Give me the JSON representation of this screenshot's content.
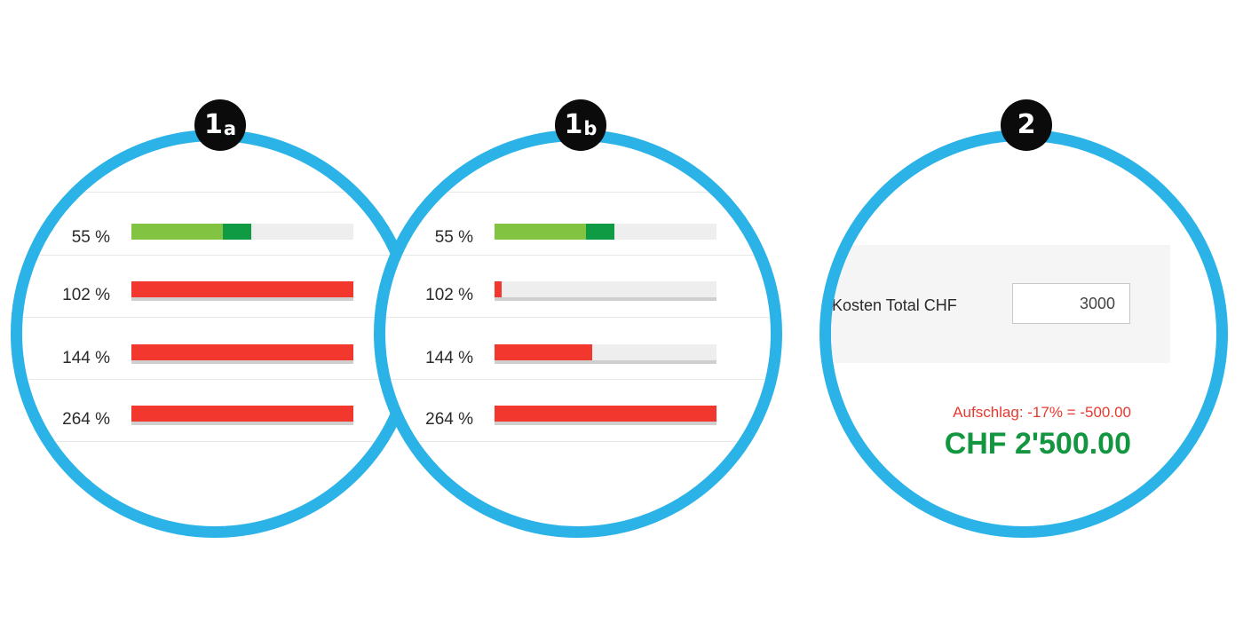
{
  "circles": [
    {
      "badge": {
        "num": "1",
        "letter": "a"
      },
      "rows": [
        {
          "label": "55 %",
          "segments": [
            {
              "start": 0,
              "fraction": 0.41,
              "color": "#82c341"
            },
            {
              "start": 0.41,
              "fraction": 0.13,
              "color": "#0f9a44"
            }
          ]
        },
        {
          "label": "102 %",
          "segments": [
            {
              "start": 0,
              "fraction": 1.0,
              "color": "#f2382e"
            }
          ]
        },
        {
          "label": "144 %",
          "segments": [
            {
              "start": 0,
              "fraction": 1.0,
              "color": "#f2382e"
            }
          ]
        },
        {
          "label": "264 %",
          "segments": [
            {
              "start": 0,
              "fraction": 1.0,
              "color": "#f2382e"
            }
          ]
        }
      ]
    },
    {
      "badge": {
        "num": "1",
        "letter": "b"
      },
      "rows": [
        {
          "label": "55 %",
          "segments": [
            {
              "start": 0,
              "fraction": 0.41,
              "color": "#82c341"
            },
            {
              "start": 0.41,
              "fraction": 0.13,
              "color": "#0f9a44"
            }
          ]
        },
        {
          "label": "102 %",
          "segments": [
            {
              "start": 0,
              "fraction": 0.03,
              "color": "#f2382e"
            }
          ]
        },
        {
          "label": "144 %",
          "segments": [
            {
              "start": 0,
              "fraction": 0.44,
              "color": "#f2382e"
            }
          ]
        },
        {
          "label": "264 %",
          "segments": [
            {
              "start": 0,
              "fraction": 1.0,
              "color": "#f2382e"
            }
          ]
        }
      ]
    }
  ],
  "panel2": {
    "badge": {
      "num": "2"
    },
    "kosten_label": "e Kosten Total CHF",
    "kosten_value": "3000",
    "aufschlag": "Aufschlag: -17% = -500.00",
    "total": "CHF 2'500.00"
  },
  "colors": {
    "circle_border": "#2bb3e8",
    "badge_bg": "#0b0b0b",
    "aufschlag": "#e8392f",
    "total": "#12963f"
  }
}
